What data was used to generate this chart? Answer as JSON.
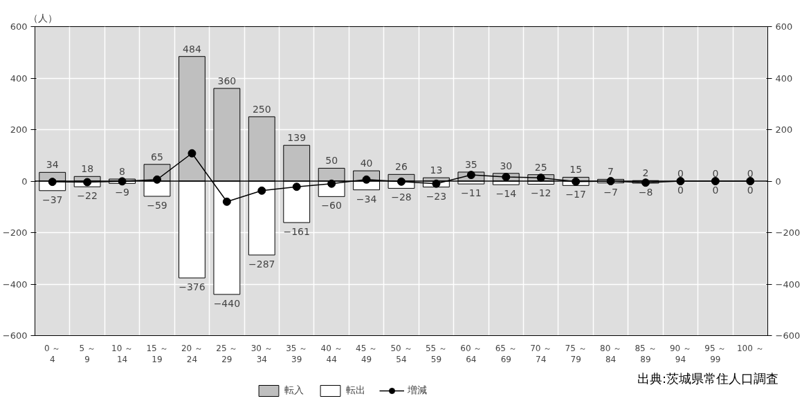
{
  "chart_data": {
    "type": "bar",
    "stacked": true,
    "ylabel": "（人）",
    "categories": [
      "0 ～\n4",
      "5 ～\n9",
      "10 ～\n14",
      "15 ～\n19",
      "20 ～\n24",
      "25 ～\n29",
      "30 ～\n34",
      "35 ～\n39",
      "40 ～\n44",
      "45 ～\n49",
      "50 ～\n54",
      "55 ～\n59",
      "60 ～\n64",
      "65 ～\n69",
      "70 ～\n74",
      "75 ～\n79",
      "80 ～\n84",
      "85 ～\n89",
      "90 ～\n94",
      "95 ～\n99",
      "100 ～"
    ],
    "series": [
      {
        "name": "転入",
        "color": "#bfbfbf",
        "values": [
          34,
          18,
          8,
          65,
          484,
          360,
          250,
          139,
          50,
          40,
          26,
          13,
          35,
          30,
          25,
          15,
          7,
          2,
          0,
          0,
          0
        ],
        "value_labels": [
          "34",
          "18",
          "8",
          "65",
          "484",
          "360",
          "250",
          "139",
          "50",
          "40",
          "26",
          "13",
          "35",
          "30",
          "25",
          "15",
          "7",
          "2",
          "0",
          "0",
          "0"
        ]
      },
      {
        "name": "転出",
        "color": "#ffffff",
        "values": [
          -37,
          -22,
          -9,
          -59,
          -376,
          -440,
          -287,
          -161,
          -60,
          -34,
          -28,
          -23,
          -11,
          -14,
          -12,
          -17,
          -7,
          -8,
          0,
          0,
          0
        ],
        "value_labels": [
          "−37",
          "−22",
          "−9",
          "−59",
          "−376",
          "−440",
          "−287",
          "−161",
          "−60",
          "−34",
          "−28",
          "−23",
          "−11",
          "−14",
          "−12",
          "−17",
          "−7",
          "−8",
          "0",
          "0",
          "0"
        ]
      },
      {
        "name": "増減",
        "type": "line",
        "color": "#000000",
        "marker": "circle",
        "values": [
          -3,
          -4,
          -1,
          6,
          108,
          -80,
          -37,
          -22,
          -10,
          6,
          -2,
          -10,
          24,
          16,
          13,
          -2,
          0,
          -6,
          0,
          0,
          0
        ]
      }
    ],
    "ylim": [
      -600,
      600
    ],
    "yticks": [
      {
        "value": -600,
        "label": "−600"
      },
      {
        "value": -400,
        "label": "−400"
      },
      {
        "value": -200,
        "label": "−200"
      },
      0,
      200,
      400,
      600
    ],
    "y2lim": [
      -600,
      600
    ],
    "y2ticks": [
      {
        "value": -600,
        "label": "−600"
      },
      {
        "value": -400,
        "label": "−400"
      },
      {
        "value": -200,
        "label": "−200"
      },
      0,
      200,
      400,
      600
    ],
    "ref_lines": [
      {
        "axis": "y",
        "value": 0,
        "color": "#000000"
      }
    ],
    "grid": true,
    "legend": "bottom",
    "annotations": [
      "出典:茨城県常住人口調査"
    ]
  }
}
